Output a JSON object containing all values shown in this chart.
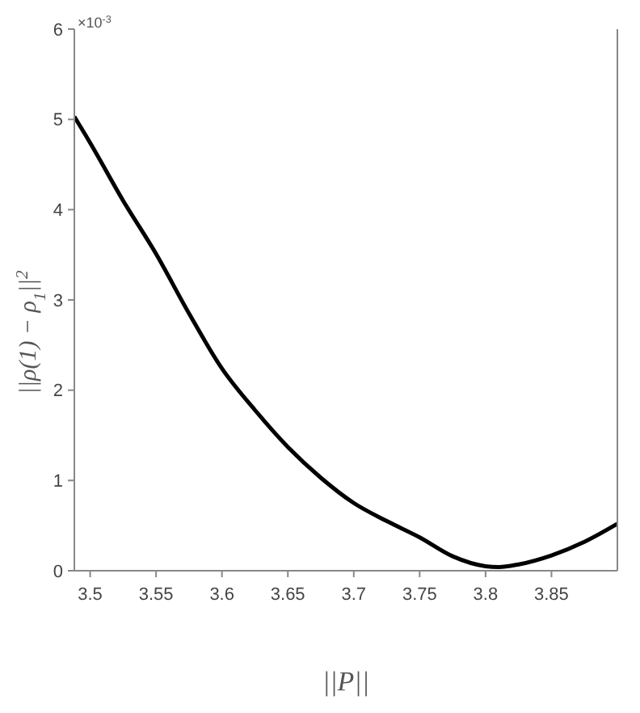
{
  "chart_data": {
    "type": "line",
    "xlabel": "||P||",
    "ylabel": "||ρ(1) − ρ$_{1}$||$^{2}$",
    "annotations": [
      "×10$^{-3}$"
    ],
    "x": [
      3.488,
      3.5,
      3.525,
      3.55,
      3.575,
      3.6,
      3.625,
      3.65,
      3.675,
      3.7,
      3.725,
      3.75,
      3.775,
      3.8,
      3.81,
      3.825,
      3.85,
      3.875,
      3.9
    ],
    "series": [
      {
        "color": "#000000",
        "values": [
          5.03,
          4.74,
          4.1,
          3.51,
          2.85,
          2.24,
          1.78,
          1.37,
          1.03,
          0.75,
          0.55,
          0.37,
          0.16,
          0.05,
          0.04,
          0.07,
          0.17,
          0.32,
          0.52
        ]
      }
    ],
    "xlim": [
      3.488,
      3.9
    ],
    "xticks": [
      3.5,
      3.55,
      3.6,
      3.65,
      3.7,
      3.75,
      3.8,
      3.85
    ],
    "ylim": [
      0,
      6
    ],
    "yticks": [
      0,
      1,
      2,
      3,
      4,
      5,
      6
    ],
    "grid": false,
    "marker": "none",
    "line_style": "solid"
  }
}
